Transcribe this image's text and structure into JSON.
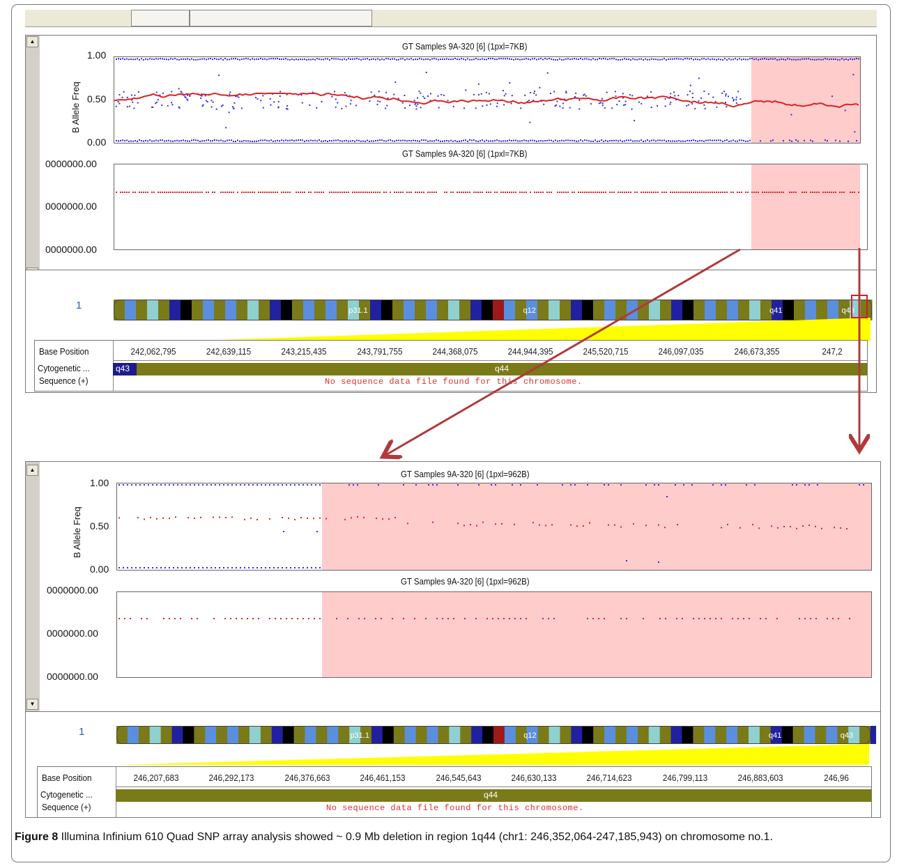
{
  "figure": {
    "caption_label": "Figure 8",
    "caption_text": " Illumina Infinium 610 Quad SNP array analysis showed ~ 0.9 Mb deletion in region 1q44 (chr1: 246,352,064-247,185,943) on chromosome no.1",
    "caption_tail": "."
  },
  "top_panel": {
    "baf_title": "GT Samples 9A-320 [6]  (1pxl=7KB)",
    "lrr_title": "GT Samples 9A-320 [6]  (1pxl=7KB)",
    "baf_ylabel": "B Allele Freq",
    "baf_ticks": [
      "1.00",
      "0.50",
      "0.00"
    ],
    "lrr_ticks": [
      "0000000.00",
      "0000000.00",
      "0000000.00"
    ],
    "chrom_number": "1",
    "bands": [
      "p31.1",
      "q12",
      "q41",
      "q43"
    ],
    "row_labels": [
      "Base Position",
      "Cytogenetic ...",
      "Sequence (+)"
    ],
    "positions": [
      "242,062,795",
      "242,639,115",
      "243,215,435",
      "243,791,755",
      "244,368,075",
      "244,944,395",
      "245,520,715",
      "246,097,035",
      "246,673,355",
      "247,2"
    ],
    "cyto_bands": [
      "q43",
      "q44"
    ],
    "sequence_msg": "No sequence data file found for this chromosome."
  },
  "bottom_panel": {
    "baf_title": "GT Samples 9A-320 [6]  (1pxl=962B)",
    "lrr_title": "GT Samples 9A-320 [6]  (1pxl=962B)",
    "baf_ylabel": "B Allele Freq",
    "baf_ticks": [
      "1.00",
      "0.50",
      "0.00"
    ],
    "lrr_ticks": [
      "0000000.00",
      "0000000.00",
      "0000000.00"
    ],
    "chrom_number": "1",
    "bands": [
      "p31.1",
      "q12",
      "q41",
      "q43"
    ],
    "row_labels": [
      "Base Position",
      "Cytogenetic ...",
      "Sequence (+)"
    ],
    "positions": [
      "246,207,683",
      "246,292,173",
      "246,376,663",
      "246,461,153",
      "246,545,643",
      "246,630,133",
      "246,714,623",
      "246,799,113",
      "246,883,603",
      "246,96"
    ],
    "cyto_bands": [
      "q44"
    ],
    "sequence_msg": "No sequence data file found for this chromosome."
  },
  "colors": {
    "highlight": "#ffcccc",
    "baf_points": "#2b2bdd",
    "lrr_points": "#e02020",
    "arrow": "#b03a3a",
    "cyto_band": "#7a7a18",
    "ideogram_yellow": "#ffff00"
  }
}
